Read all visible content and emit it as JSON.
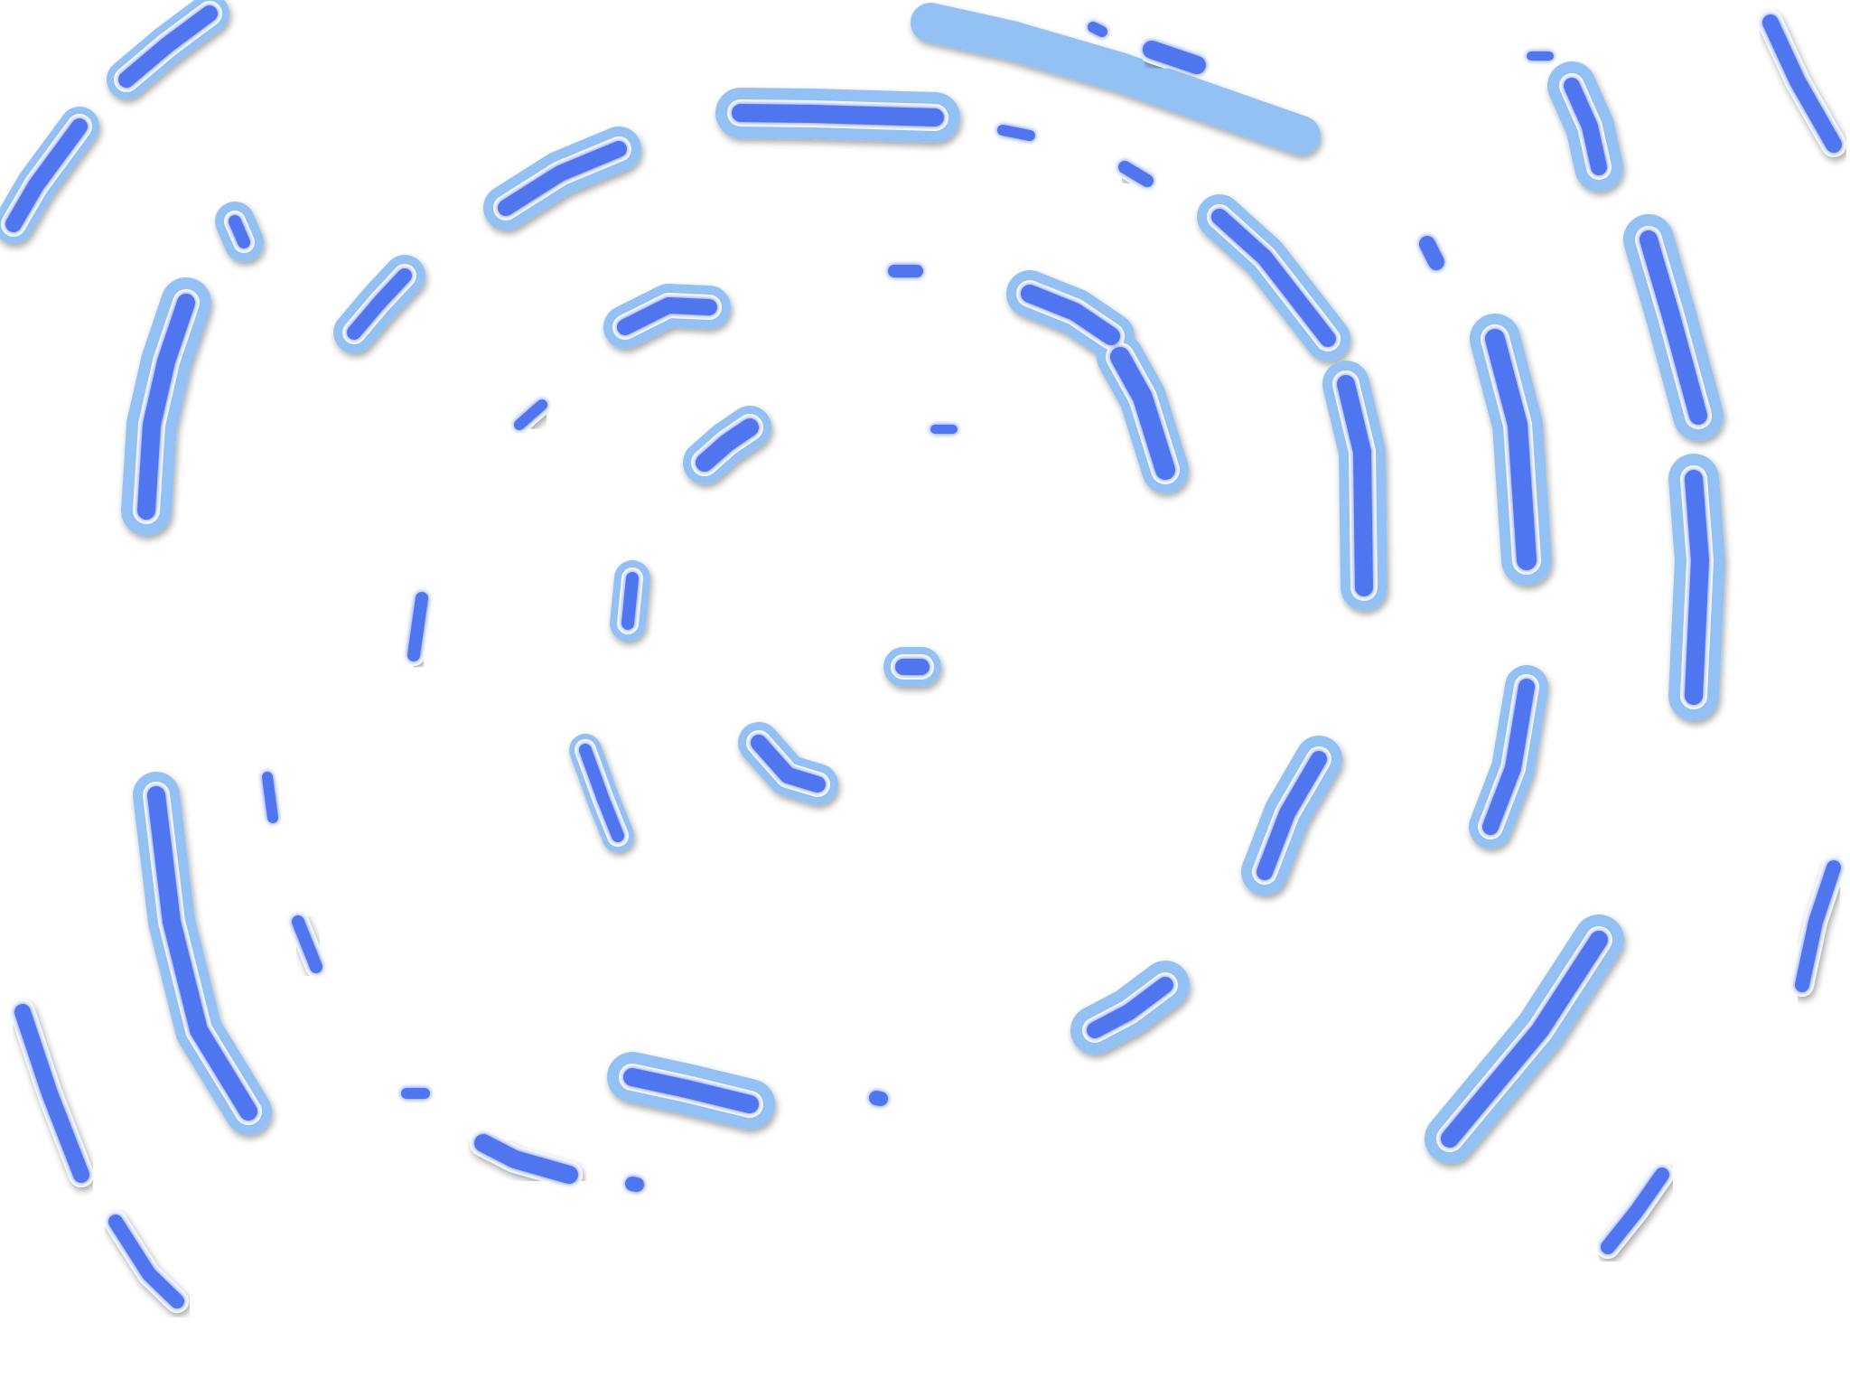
{
  "scene": {
    "name": "concentric-dash-swirl",
    "colors": {
      "background": "#ffffff",
      "halo": "#94c1f3",
      "outline": "#ffffff",
      "core": "#4f74ef",
      "shadow": "#5c6f8c"
    }
  }
}
